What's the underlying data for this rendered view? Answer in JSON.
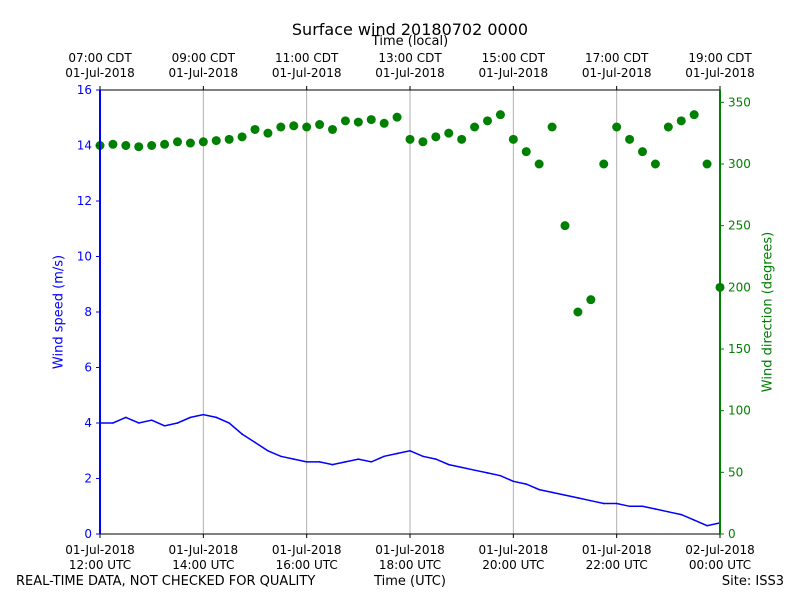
{
  "chart_data": {
    "type": "line",
    "title": "Surface wind 20180702 0000",
    "xlabel": "Time (UTC)",
    "x2label": "Time (local)",
    "ylabel": "Wind speed (m/s)",
    "y2label": "Wind direction (degrees)",
    "xlim": [
      12,
      24
    ],
    "ylim": [
      0,
      16
    ],
    "y2lim": [
      0,
      360
    ],
    "grid": "vertical",
    "bottom_ticks": [
      {
        "pos": 12,
        "line1": "01-Jul-2018",
        "line2": "12:00 UTC"
      },
      {
        "pos": 14,
        "line1": "01-Jul-2018",
        "line2": "14:00 UTC"
      },
      {
        "pos": 16,
        "line1": "01-Jul-2018",
        "line2": "16:00 UTC"
      },
      {
        "pos": 18,
        "line1": "01-Jul-2018",
        "line2": "18:00 UTC"
      },
      {
        "pos": 20,
        "line1": "01-Jul-2018",
        "line2": "20:00 UTC"
      },
      {
        "pos": 22,
        "line1": "01-Jul-2018",
        "line2": "22:00 UTC"
      },
      {
        "pos": 24,
        "line1": "02-Jul-2018",
        "line2": "00:00 UTC"
      }
    ],
    "top_ticks": [
      {
        "pos": 12,
        "line1": "07:00 CDT",
        "line2": "01-Jul-2018"
      },
      {
        "pos": 14,
        "line1": "09:00 CDT",
        "line2": "01-Jul-2018"
      },
      {
        "pos": 16,
        "line1": "11:00 CDT",
        "line2": "01-Jul-2018"
      },
      {
        "pos": 18,
        "line1": "13:00 CDT",
        "line2": "01-Jul-2018"
      },
      {
        "pos": 20,
        "line1": "15:00 CDT",
        "line2": "01-Jul-2018"
      },
      {
        "pos": 22,
        "line1": "17:00 CDT",
        "line2": "01-Jul-2018"
      },
      {
        "pos": 24,
        "line1": "19:00 CDT",
        "line2": "01-Jul-2018"
      }
    ],
    "yticks": [
      0,
      2,
      4,
      6,
      8,
      10,
      12,
      14,
      16
    ],
    "y2ticks": [
      0,
      50,
      100,
      150,
      200,
      250,
      300,
      350
    ],
    "series": [
      {
        "name": "Wind speed",
        "axis": "left",
        "style": "line",
        "color": "#0000ff",
        "x": [
          12.0,
          12.25,
          12.5,
          12.75,
          13.0,
          13.25,
          13.5,
          13.75,
          14.0,
          14.25,
          14.5,
          14.75,
          15.0,
          15.25,
          15.5,
          15.75,
          16.0,
          16.25,
          16.5,
          16.75,
          17.0,
          17.25,
          17.5,
          17.75,
          18.0,
          18.25,
          18.5,
          18.75,
          19.0,
          19.25,
          19.5,
          19.75,
          20.0,
          20.25,
          20.5,
          20.75,
          21.0,
          21.25,
          21.5,
          21.75,
          22.0,
          22.25,
          22.5,
          22.75,
          23.0,
          23.25,
          23.5,
          23.75,
          24.0
        ],
        "y": [
          4.0,
          4.0,
          4.2,
          4.0,
          4.1,
          3.9,
          4.0,
          4.2,
          4.3,
          4.2,
          4.0,
          3.6,
          3.3,
          3.0,
          2.8,
          2.7,
          2.6,
          2.6,
          2.5,
          2.6,
          2.7,
          2.6,
          2.8,
          2.9,
          3.0,
          2.8,
          2.7,
          2.5,
          2.4,
          2.3,
          2.2,
          2.1,
          1.9,
          1.8,
          1.6,
          1.5,
          1.4,
          1.3,
          1.2,
          1.1,
          1.1,
          1.0,
          1.0,
          0.9,
          0.8,
          0.7,
          0.5,
          0.3,
          0.4
        ]
      },
      {
        "name": "Wind direction",
        "axis": "right",
        "style": "markers",
        "color": "#008000",
        "x": [
          12.0,
          12.25,
          12.5,
          12.75,
          13.0,
          13.25,
          13.5,
          13.75,
          14.0,
          14.25,
          14.5,
          14.75,
          15.0,
          15.25,
          15.5,
          15.75,
          16.0,
          16.25,
          16.5,
          16.75,
          17.0,
          17.25,
          17.5,
          17.75,
          18.0,
          18.25,
          18.5,
          18.75,
          19.0,
          19.25,
          19.5,
          19.75,
          20.0,
          20.25,
          20.5,
          20.75,
          21.0,
          21.25,
          21.5,
          21.75,
          22.0,
          22.25,
          22.5,
          22.75,
          23.0,
          23.25,
          23.5,
          23.75,
          24.0
        ],
        "y": [
          315,
          316,
          315,
          314,
          315,
          316,
          318,
          317,
          318,
          319,
          320,
          322,
          328,
          325,
          330,
          331,
          330,
          332,
          328,
          335,
          334,
          336,
          333,
          338,
          320,
          318,
          322,
          325,
          320,
          330,
          335,
          340,
          320,
          310,
          300,
          330,
          250,
          180,
          190,
          300,
          330,
          320,
          310,
          300,
          330,
          335,
          340,
          300,
          200
        ]
      }
    ],
    "footer_left": "REAL-TIME DATA, NOT CHECKED FOR QUALITY",
    "footer_right": "Site: ISS3"
  },
  "colors": {
    "speed": "#0000ff",
    "direction": "#008000",
    "grid": "#b0b0b0"
  }
}
